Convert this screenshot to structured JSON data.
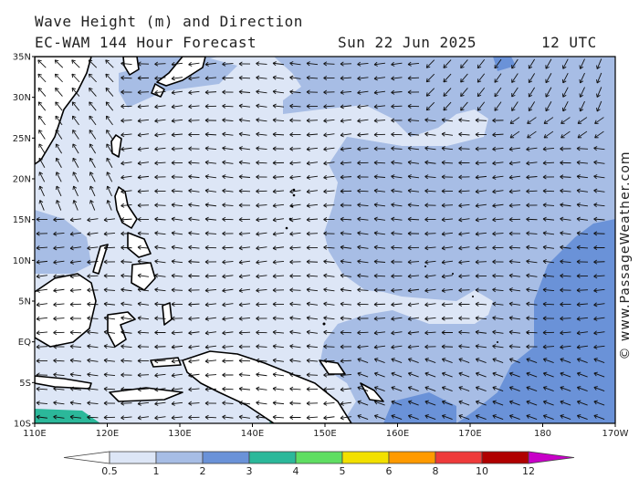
{
  "header": {
    "title_line1": "Wave Height (m) and Direction",
    "title_line2": "EC-WAM 144 Hour Forecast",
    "date": "Sun 22 Jun 2025",
    "time": "12 UTC"
  },
  "credit": "© www.PassageWeather.com",
  "map": {
    "region": "Western Pacific",
    "lon_range": [
      "110E",
      "170W"
    ],
    "lat_range": [
      "10S",
      "35N"
    ],
    "lon_labels": [
      "110E",
      "120E",
      "130E",
      "140E",
      "150E",
      "160E",
      "170E",
      "180",
      "170W"
    ],
    "lat_labels": [
      "35N",
      "30N",
      "25N",
      "20N",
      "15N",
      "10N",
      "5N",
      "EQ",
      "5S",
      "10S"
    ],
    "arrow_direction": "westward (east-to-west trade wind swell)",
    "palette": {
      "land": "#ffffff",
      "band_0_5_1": "#dde6f6",
      "band_1_2": "#a7bde5",
      "band_2_3": "#6a92d8",
      "band_3_4": "#2bb89a",
      "coast": "#000000"
    }
  },
  "legend": {
    "labels": [
      "0.5",
      "1",
      "2",
      "3",
      "4",
      "5",
      "6",
      "8",
      "10",
      "12"
    ],
    "colors": [
      "#dde6f6",
      "#a7bde5",
      "#6a92d8",
      "#2bb89a",
      "#5fde62",
      "#f2e000",
      "#ff9a00",
      "#ee3a3a",
      "#b00000",
      "#c800c8"
    ]
  }
}
